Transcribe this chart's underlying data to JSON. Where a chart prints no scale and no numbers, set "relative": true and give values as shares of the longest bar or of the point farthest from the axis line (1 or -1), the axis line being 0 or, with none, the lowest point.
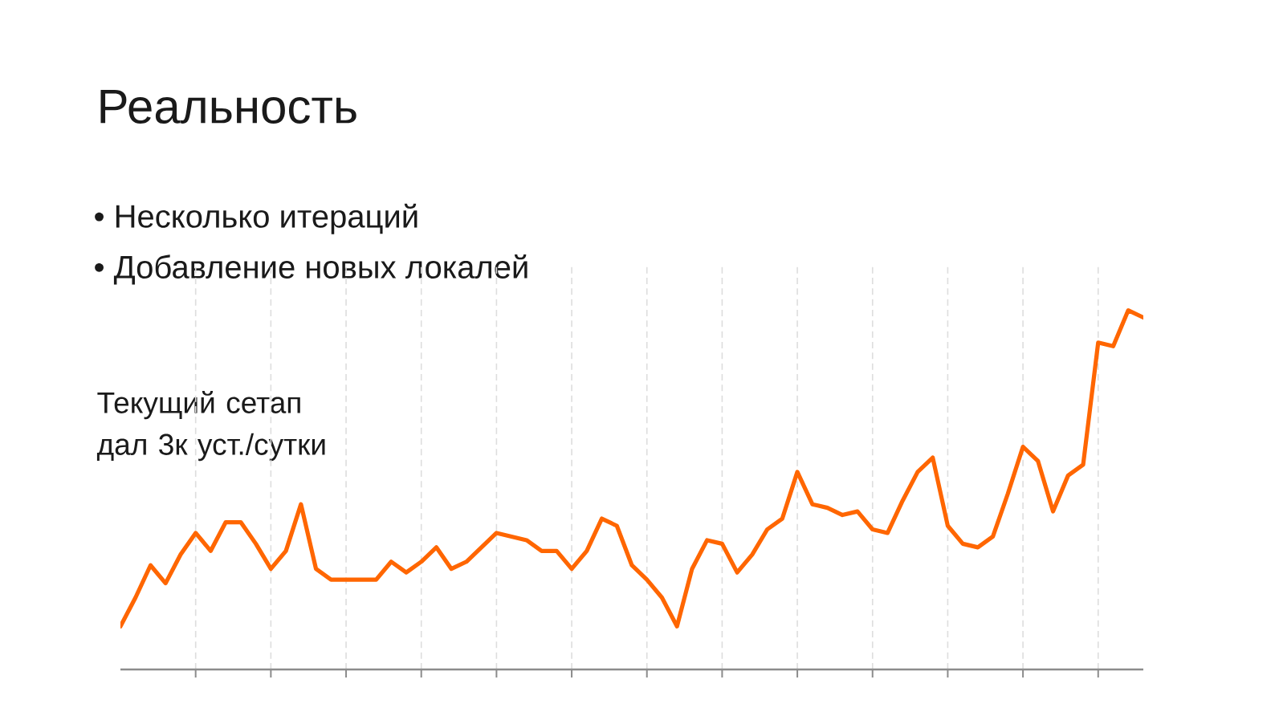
{
  "chart_data": {
    "type": "line",
    "title": "Реальность",
    "annotations": [
      "• Несколько итераций",
      "• Добавление новых локалей",
      "Текущий сетап дал 3к уст./сутки"
    ],
    "relative": true,
    "categories": [
      null,
      null,
      null,
      null,
      null,
      null,
      null,
      null,
      null,
      null,
      null,
      null,
      null,
      null,
      null,
      null,
      null,
      null,
      null,
      null,
      null,
      null,
      null,
      null,
      null,
      null,
      null,
      null,
      null,
      null,
      null,
      null,
      null,
      null,
      null,
      null,
      null,
      null,
      null,
      null,
      null,
      null,
      null,
      null,
      null,
      null,
      null,
      null,
      null,
      null,
      null,
      null,
      null,
      null,
      null,
      null,
      null,
      null,
      null,
      null,
      null,
      null,
      null,
      null,
      null,
      null,
      null,
      null,
      null
    ],
    "grid": "x",
    "line_style": "solid",
    "series": [
      {
        "color": "#ff6600",
        "values": [
          0.12,
          0.2,
          0.29,
          0.24,
          0.32,
          0.38,
          0.33,
          0.41,
          0.41,
          0.35,
          0.28,
          0.33,
          0.46,
          0.28,
          0.25,
          0.25,
          0.25,
          0.25,
          0.3,
          0.27,
          0.3,
          0.34,
          0.28,
          0.3,
          0.34,
          0.38,
          0.37,
          0.36,
          0.33,
          0.33,
          0.28,
          0.33,
          0.42,
          0.4,
          0.29,
          0.25,
          0.2,
          0.12,
          0.28,
          0.36,
          0.35,
          0.27,
          0.32,
          0.39,
          0.42,
          0.55,
          0.46,
          0.45,
          0.43,
          0.44,
          0.39,
          0.38,
          0.47,
          0.55,
          0.59,
          0.4,
          0.35,
          0.34,
          0.37,
          0.49,
          0.62,
          0.58,
          0.44,
          0.54,
          0.57,
          0.91,
          0.9,
          1,
          0.98
        ]
      }
    ]
  }
}
